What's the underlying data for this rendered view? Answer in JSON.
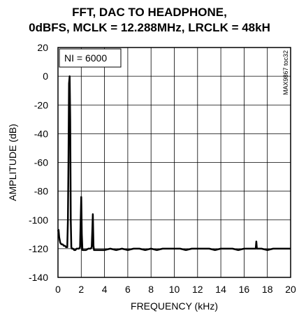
{
  "chart_data": {
    "type": "line",
    "title_line1": "FFT, DAC TO HEADPHONE,",
    "title_line2": "0dBFS, MCLK = 12.288MHz, LRCLK = 48kH",
    "xlabel": "FREQUENCY (kHz)",
    "ylabel": "AMPLITUDE (dB)",
    "xlim": [
      0,
      20
    ],
    "ylim": [
      -140,
      20
    ],
    "x_ticks": [
      "0",
      "2",
      "4",
      "6",
      "8",
      "10",
      "12",
      "14",
      "16",
      "18",
      "20"
    ],
    "y_ticks": [
      "20",
      "0",
      "-20",
      "-40",
      "-60",
      "-80",
      "-100",
      "-120",
      "-140"
    ],
    "grid": true,
    "annotation": "NI = 6000",
    "side_code": "MAX9867 toc32",
    "series": [
      {
        "x": [
          0.0,
          0.05,
          0.1,
          0.15,
          0.2,
          0.3,
          0.4,
          0.5,
          0.6,
          0.7,
          0.8,
          0.85,
          0.9,
          0.95,
          1.0,
          1.05,
          1.1,
          1.15,
          1.2,
          1.3,
          1.4,
          1.5,
          1.6,
          1.7,
          1.8,
          1.9,
          1.95,
          2.0,
          2.05,
          2.1,
          2.2,
          2.4,
          2.6,
          2.8,
          2.9,
          2.95,
          3.0,
          3.05,
          3.1,
          3.2,
          3.4,
          3.6,
          3.8,
          4.0,
          4.5,
          5.0,
          5.5,
          6.0,
          6.5,
          7.0,
          7.5,
          8.0,
          8.5,
          9.0,
          9.5,
          10.0,
          10.5,
          11.0,
          11.5,
          12.0,
          12.5,
          13.0,
          13.5,
          14.0,
          14.5,
          15.0,
          15.5,
          16.0,
          16.5,
          17.0,
          17.05,
          17.1,
          17.5,
          18.0,
          18.5,
          19.0,
          19.5,
          20.0
        ],
        "values": [
          -108,
          -107,
          -112,
          -114,
          -116,
          -117,
          -117,
          -118,
          -118,
          -119,
          -119,
          -100,
          -60,
          -5,
          0,
          -30,
          -100,
          -119,
          -120,
          -120,
          -121,
          -121,
          -120,
          -120,
          -120,
          -119,
          -100,
          -84,
          -110,
          -121,
          -121,
          -121,
          -120,
          -120,
          -119,
          -108,
          -96,
          -118,
          -121,
          -121,
          -121,
          -121,
          -121,
          -121,
          -120,
          -121,
          -120,
          -121,
          -120,
          -120,
          -121,
          -120,
          -121,
          -120,
          -120,
          -120,
          -120,
          -121,
          -120,
          -120,
          -120,
          -120,
          -121,
          -120,
          -120,
          -120,
          -121,
          -120,
          -120,
          -120,
          -115,
          -120,
          -120,
          -121,
          -120,
          -120,
          -120,
          -120
        ]
      }
    ]
  }
}
